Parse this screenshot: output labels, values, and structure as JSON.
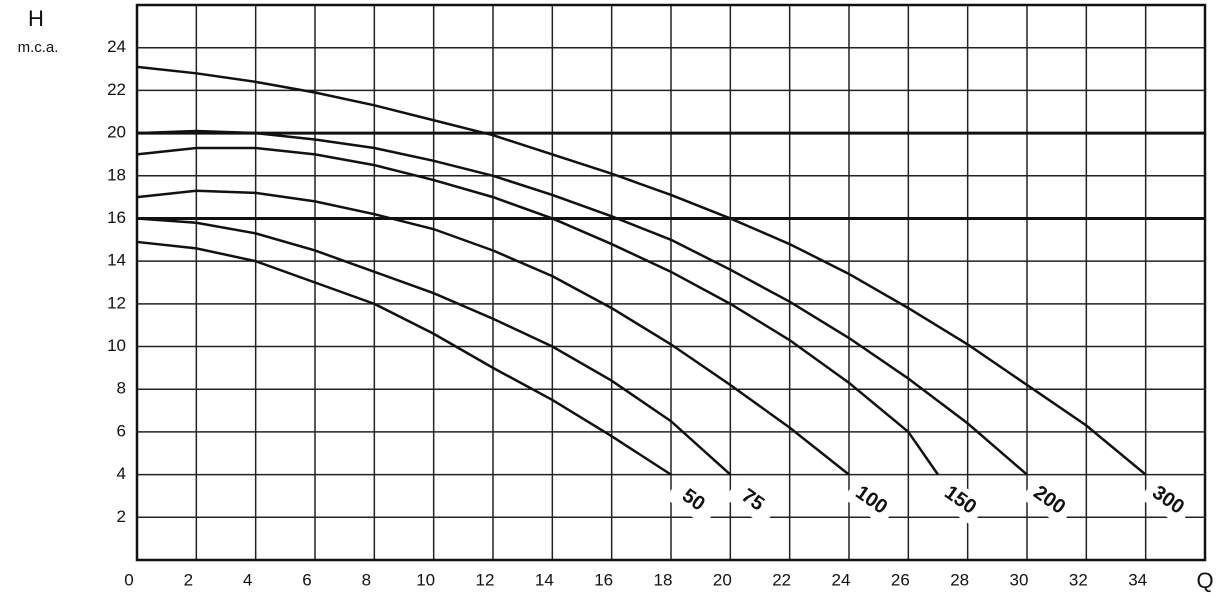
{
  "chart_data": {
    "type": "line",
    "y_label": "H",
    "y_unit": "m.c.a.",
    "x_label": "Q",
    "xlim": [
      0,
      36
    ],
    "xticks": [
      0,
      2,
      4,
      6,
      8,
      10,
      12,
      14,
      16,
      18,
      20,
      22,
      24,
      26,
      28,
      30,
      32,
      34
    ],
    "ylim": [
      0,
      26
    ],
    "yticks": [
      2,
      4,
      6,
      8,
      10,
      12,
      14,
      16,
      18,
      20,
      22,
      24
    ],
    "grid": true,
    "reference_lines": [
      16,
      20
    ],
    "color": "#111111",
    "series": [
      {
        "name": "50",
        "x": [
          0,
          2,
          4,
          6,
          8,
          10,
          12,
          14,
          16,
          18
        ],
        "values": [
          14.9,
          14.6,
          14,
          13,
          12,
          10.6,
          9,
          7.5,
          5.8,
          4
        ]
      },
      {
        "name": "75",
        "x": [
          0,
          2,
          4,
          6,
          8,
          10,
          12,
          14,
          16,
          18,
          20
        ],
        "values": [
          16,
          15.8,
          15.3,
          14.5,
          13.5,
          12.5,
          11.3,
          10,
          8.4,
          6.5,
          4
        ]
      },
      {
        "name": "100",
        "x": [
          0,
          2,
          4,
          6,
          8,
          10,
          12,
          14,
          16,
          18,
          20,
          22,
          24
        ],
        "values": [
          17,
          17.3,
          17.2,
          16.8,
          16.2,
          15.5,
          14.5,
          13.3,
          11.8,
          10.1,
          8.2,
          6.2,
          4
        ]
      },
      {
        "name": "150",
        "x": [
          0,
          2,
          4,
          6,
          8,
          10,
          12,
          14,
          16,
          18,
          20,
          22,
          24,
          26,
          27
        ],
        "values": [
          19,
          19.3,
          19.3,
          19,
          18.5,
          17.8,
          17,
          16,
          14.8,
          13.5,
          12,
          10.3,
          8.3,
          6,
          4
        ]
      },
      {
        "name": "200",
        "x": [
          0,
          2,
          4,
          6,
          8,
          10,
          12,
          14,
          16,
          18,
          20,
          22,
          24,
          26,
          28,
          30
        ],
        "values": [
          20,
          20.1,
          20,
          19.7,
          19.3,
          18.7,
          18,
          17.1,
          16.1,
          15,
          13.6,
          12.1,
          10.4,
          8.5,
          6.4,
          4
        ]
      },
      {
        "name": "300",
        "x": [
          0,
          2,
          4,
          6,
          8,
          10,
          12,
          14,
          16,
          18,
          20,
          22,
          24,
          26,
          28,
          30,
          32,
          34
        ],
        "values": [
          23.1,
          22.8,
          22.4,
          21.9,
          21.3,
          20.6,
          19.9,
          19,
          18.1,
          17.1,
          16,
          14.8,
          13.4,
          11.8,
          10.1,
          8.2,
          6.3,
          4
        ]
      }
    ]
  }
}
